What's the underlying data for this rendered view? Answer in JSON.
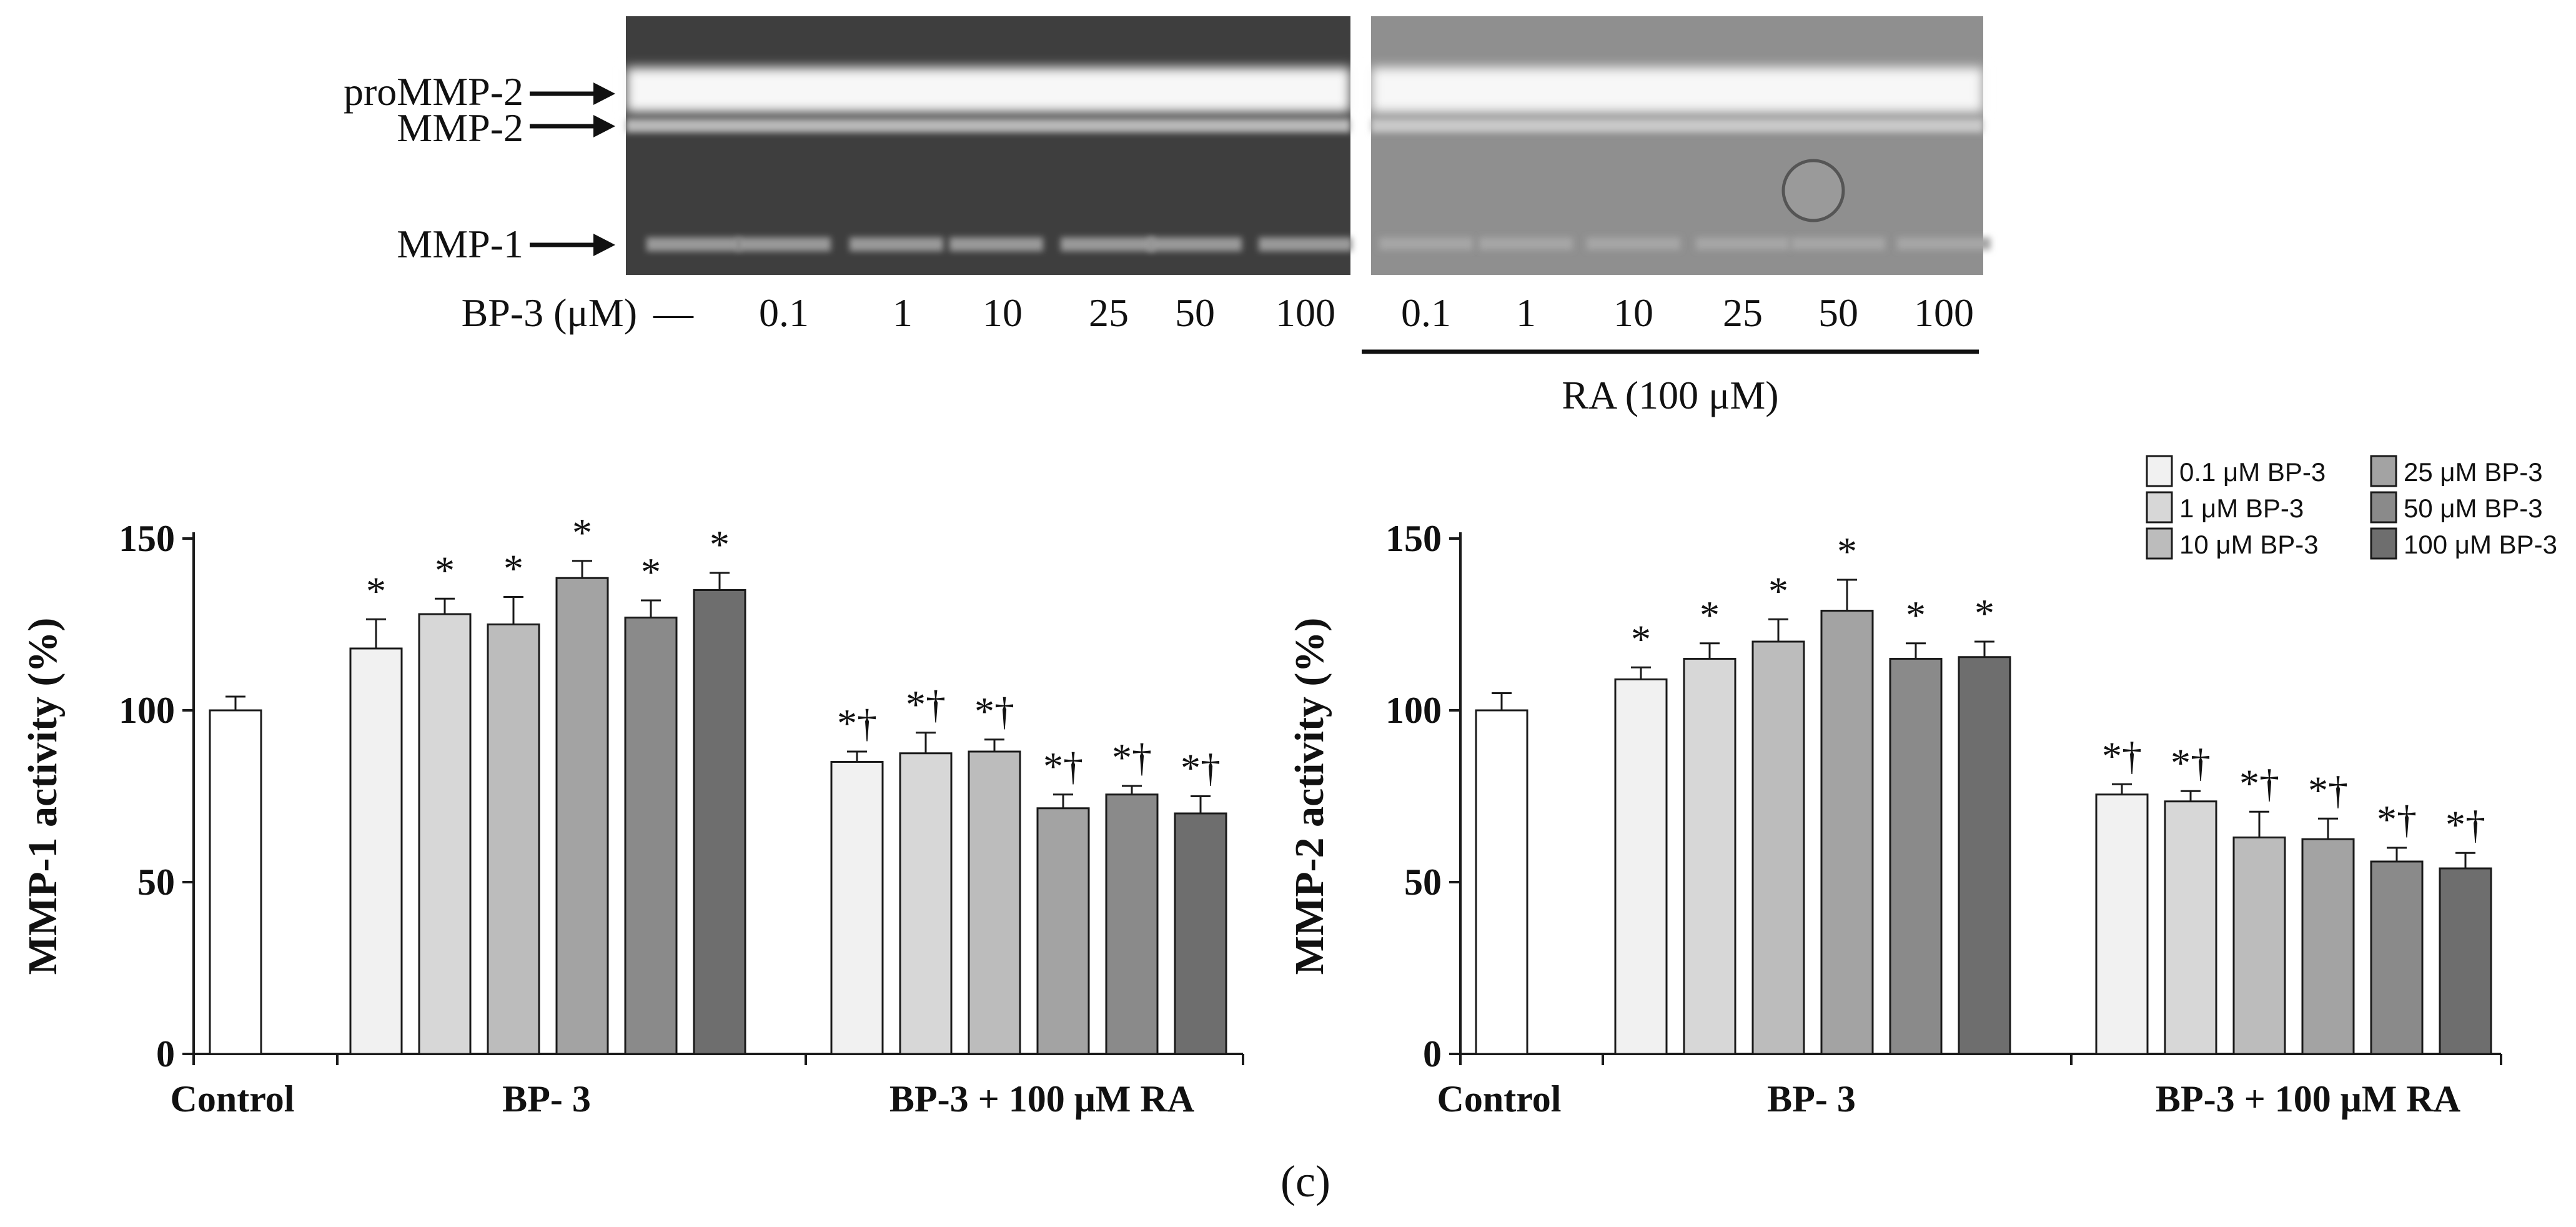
{
  "colors": {
    "fills": [
      "#ffffff",
      "#f1f1f1",
      "#d7d7d7",
      "#bcbcbc",
      "#a3a3a3",
      "#8a8a8a",
      "#6e6e6e"
    ],
    "stroke": "#1a1a1a",
    "gel_left_bg": "#3e3e3e",
    "gel_right_bg": "#8f8f8f",
    "band_color": "#f7f7f7"
  },
  "gel": {
    "labels": {
      "pro": "proMMP-2",
      "mmp2": "MMP-2",
      "mmp1": "MMP-1"
    },
    "dose_label": "BP-3 (μM)",
    "doses_left": [
      "—",
      "0.1",
      "1",
      "10",
      "25",
      "50",
      "100"
    ],
    "doses_right": [
      "0.1",
      "1",
      "10",
      "25",
      "50",
      "100"
    ],
    "ra_label": "RA (100 μM)"
  },
  "legend": {
    "items": [
      "0.1 μM BP-3",
      "1 μM BP-3",
      "10 μM BP-3",
      "25 μM BP-3",
      "50 μM BP-3",
      "100 μM BP-3"
    ]
  },
  "panel_caption": "(c)",
  "chart_data": [
    {
      "type": "bar",
      "title": "",
      "ylabel": "MMP-1 activity (%)",
      "ylim": [
        0,
        150
      ],
      "yticks": [
        0,
        50,
        100,
        150
      ],
      "groups": [
        "Control",
        "BP- 3",
        "BP-3 + 100 μM RA"
      ],
      "series": [
        {
          "name": "Control",
          "group": 0,
          "fill": 0,
          "values": [
            100
          ],
          "errors": [
            4
          ],
          "marks": [
            ""
          ]
        },
        {
          "name": "BP-3",
          "group": 1,
          "fills": [
            1,
            2,
            3,
            4,
            5,
            6
          ],
          "values": [
            118,
            128,
            125,
            138.5,
            127,
            135
          ],
          "errors": [
            8.5,
            4.5,
            8,
            5,
            5,
            5
          ],
          "marks": [
            "*",
            "*",
            "*",
            "*",
            "*",
            "*"
          ]
        },
        {
          "name": "BP-3 + 100 μM RA",
          "group": 2,
          "fills": [
            1,
            2,
            3,
            4,
            5,
            6
          ],
          "values": [
            85,
            87.5,
            88,
            71.5,
            75.5,
            70
          ],
          "errors": [
            3,
            6,
            3.5,
            4,
            2.5,
            5
          ],
          "marks": [
            "*†",
            "*†",
            "*†",
            "*†",
            "*†",
            "*†"
          ]
        }
      ]
    },
    {
      "type": "bar",
      "title": "",
      "ylabel": "MMP-2 activity (%)",
      "ylim": [
        0,
        150
      ],
      "yticks": [
        0,
        50,
        100,
        150
      ],
      "groups": [
        "Control",
        "BP- 3",
        "BP-3 + 100 μM RA"
      ],
      "series": [
        {
          "name": "Control",
          "group": 0,
          "fill": 0,
          "values": [
            100
          ],
          "errors": [
            5
          ],
          "marks": [
            ""
          ]
        },
        {
          "name": "BP-3",
          "group": 1,
          "fills": [
            1,
            2,
            3,
            4,
            5,
            6
          ],
          "values": [
            109,
            115,
            120,
            129,
            115,
            115.5
          ],
          "errors": [
            3.5,
            4.5,
            6.5,
            9,
            4.5,
            4.5
          ],
          "marks": [
            "*",
            "*",
            "*",
            "*",
            "*",
            "*"
          ]
        },
        {
          "name": "BP-3 + 100 μM RA",
          "group": 2,
          "fills": [
            1,
            2,
            3,
            4,
            5,
            6
          ],
          "values": [
            75.5,
            73.5,
            63,
            62.5,
            56,
            54
          ],
          "errors": [
            3,
            3,
            7.5,
            6,
            4,
            4.5
          ],
          "marks": [
            "*†",
            "*†",
            "*†",
            "*†",
            "*†",
            "*†"
          ]
        }
      ]
    }
  ]
}
